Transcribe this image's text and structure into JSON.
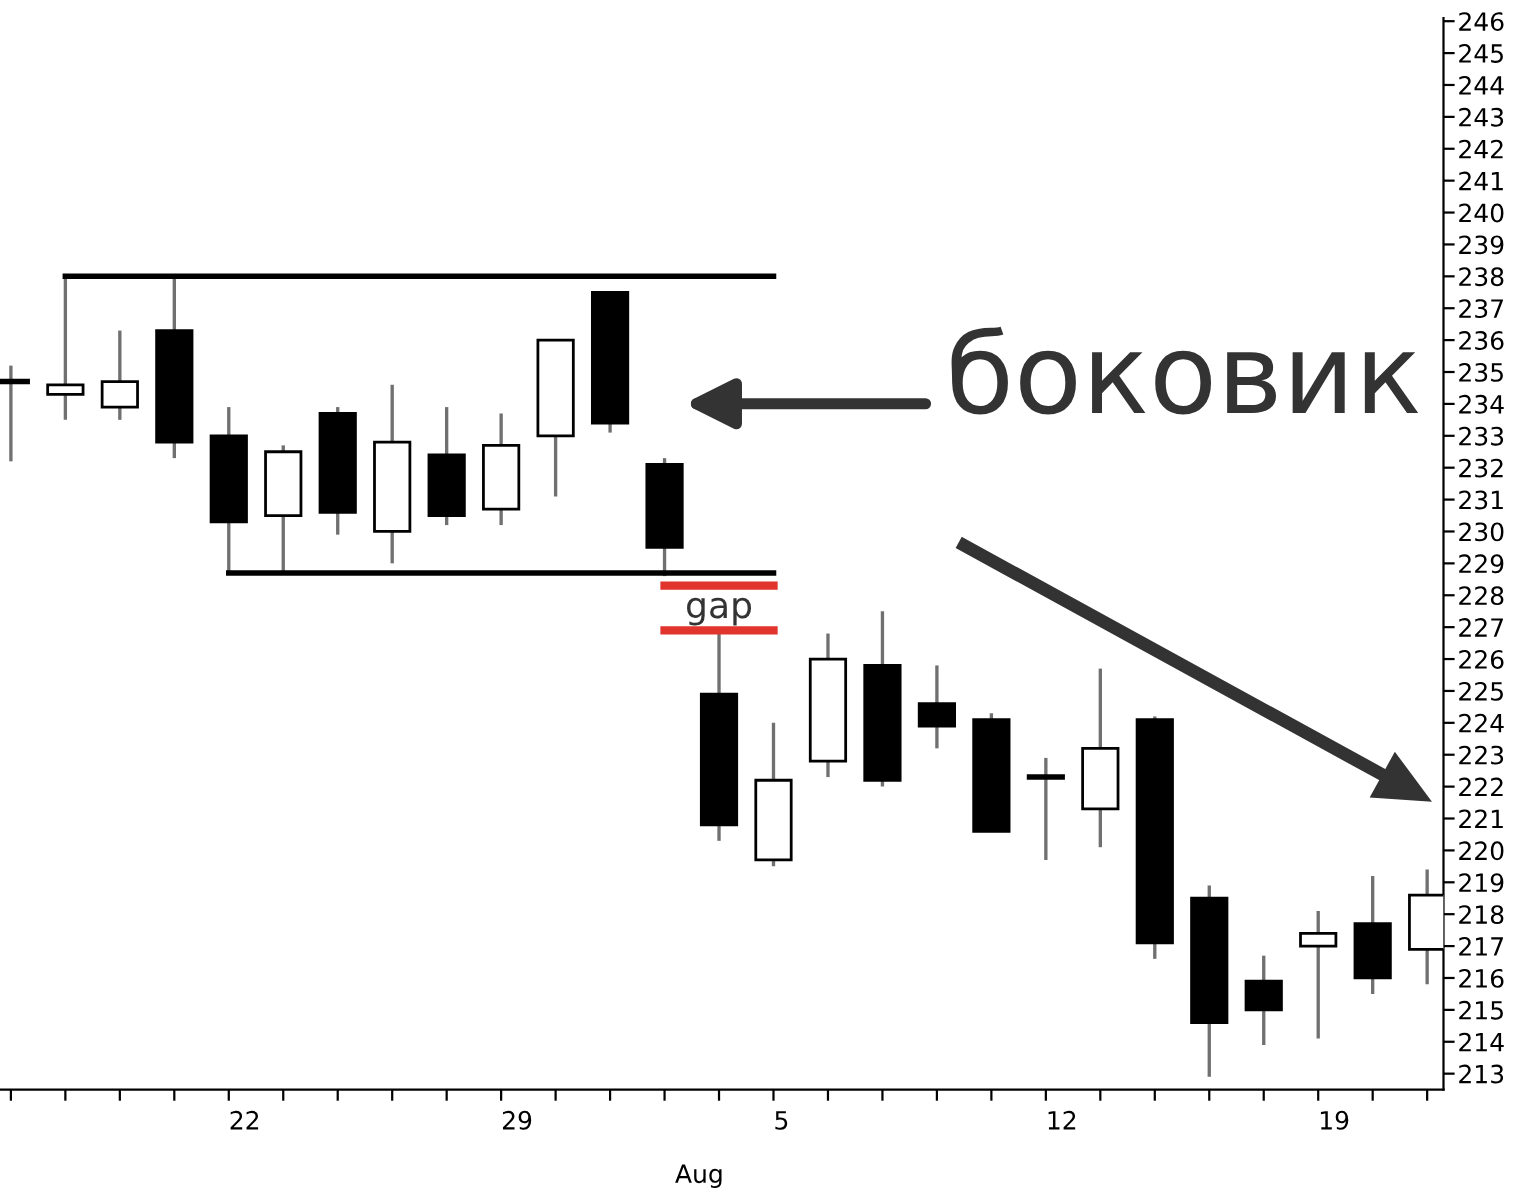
{
  "chart_data": {
    "type": "candlestick",
    "categories": [
      null,
      null,
      null,
      null,
      "22",
      null,
      null,
      null,
      null,
      "29",
      null,
      null,
      null,
      null,
      "5",
      null,
      null,
      null,
      null,
      "12",
      null,
      null,
      null,
      null,
      "19",
      null,
      null
    ],
    "ohlc": [
      [
        234.7,
        235.2,
        232.2,
        234.7
      ],
      [
        234.3,
        238.0,
        233.5,
        234.6
      ],
      [
        233.9,
        236.3,
        233.5,
        234.7
      ],
      [
        236.3,
        238.0,
        232.3,
        232.8
      ],
      [
        233.0,
        233.9,
        228.7,
        230.3
      ],
      [
        230.5,
        232.7,
        228.7,
        232.5
      ],
      [
        233.7,
        233.9,
        229.9,
        230.6
      ],
      [
        230.0,
        234.6,
        229.0,
        232.8
      ],
      [
        232.4,
        233.9,
        230.2,
        230.5
      ],
      [
        230.7,
        233.7,
        230.2,
        232.7
      ],
      [
        233.0,
        236.0,
        231.1,
        236.0
      ],
      [
        237.5,
        237.5,
        233.1,
        233.4
      ],
      [
        232.1,
        232.3,
        228.6,
        229.5
      ],
      [
        224.9,
        226.8,
        220.3,
        220.8
      ],
      [
        219.7,
        224.0,
        219.5,
        222.2
      ],
      [
        222.8,
        226.8,
        222.3,
        226.0
      ],
      [
        225.8,
        227.5,
        222.0,
        222.2
      ],
      [
        224.6,
        225.8,
        223.2,
        223.9
      ],
      [
        224.1,
        224.3,
        220.6,
        220.6
      ],
      [
        222.3,
        222.9,
        219.7,
        222.3
      ],
      [
        221.3,
        225.7,
        220.1,
        223.2
      ],
      [
        224.1,
        224.2,
        216.6,
        217.1
      ],
      [
        218.5,
        218.9,
        212.9,
        214.6
      ],
      [
        215.9,
        216.7,
        213.9,
        215.0
      ],
      [
        217.0,
        218.1,
        214.1,
        217.4
      ],
      [
        217.7,
        219.2,
        215.5,
        216.0
      ],
      [
        216.9,
        219.4,
        215.8,
        218.6
      ]
    ],
    "series": [
      {
        "type": "line",
        "color": "#000000",
        "values": [
          null,
          238.0,
          238.0,
          238.0,
          238.0,
          238.0,
          238.0,
          238.0,
          238.0,
          238.0,
          238.0,
          238.0,
          238.0,
          238.0,
          238.0,
          null,
          null,
          null,
          null,
          null,
          null,
          null,
          null,
          null,
          null,
          null,
          null
        ]
      },
      {
        "type": "line",
        "color": "#000000",
        "values": [
          null,
          null,
          null,
          null,
          228.7,
          228.7,
          228.7,
          228.7,
          228.7,
          228.7,
          228.7,
          228.7,
          228.7,
          228.7,
          228.7,
          null,
          null,
          null,
          null,
          null,
          null,
          null,
          null,
          null,
          null,
          null,
          null
        ]
      },
      {
        "type": "line",
        "color": "#e0342c",
        "values": [
          null,
          null,
          null,
          null,
          null,
          null,
          null,
          null,
          null,
          null,
          null,
          null,
          228.3,
          228.3,
          228.3,
          null,
          null,
          null,
          null,
          null,
          null,
          null,
          null,
          null,
          null,
          null,
          null
        ]
      },
      {
        "type": "line",
        "color": "#e0342c",
        "values": [
          null,
          null,
          null,
          null,
          null,
          null,
          null,
          null,
          null,
          null,
          null,
          null,
          226.9,
          226.9,
          226.9,
          null,
          null,
          null,
          null,
          null,
          null,
          null,
          null,
          null,
          null,
          null,
          null
        ]
      }
    ],
    "ylim": [
      212.5,
      246.1
    ],
    "yticks": [
      213,
      214,
      215,
      216,
      217,
      218,
      219,
      220,
      221,
      222,
      223,
      224,
      225,
      226,
      227,
      228,
      229,
      230,
      231,
      232,
      233,
      234,
      235,
      236,
      237,
      238,
      239,
      240,
      241,
      242,
      243,
      244,
      245,
      246
    ],
    "grid": false,
    "legend": false,
    "annotations": [
      "боковик",
      "gap",
      "Aug"
    ]
  }
}
